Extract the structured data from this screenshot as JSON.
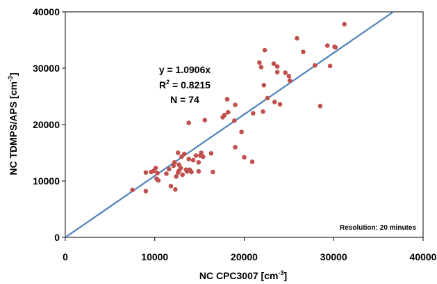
{
  "chart_data": {
    "type": "scatter",
    "xlabel_main": "NC CPC3007 [cm",
    "xlabel_sup": "-3",
    "xlabel_end": "]",
    "ylabel_main": "NC TDMPS/APS [cm",
    "ylabel_sup": "-3",
    "ylabel_end": "]",
    "xlim": [
      0,
      40000
    ],
    "ylim": [
      0,
      40000
    ],
    "xticks": [
      0,
      10000,
      20000,
      30000,
      40000
    ],
    "yticks": [
      0,
      10000,
      20000,
      30000,
      40000
    ],
    "xtick_labels": [
      "0",
      "10000",
      "20000",
      "30000",
      "40000"
    ],
    "ytick_labels": [
      "0",
      "10000",
      "20000",
      "30000",
      "40000"
    ],
    "grid": false,
    "marker_color": "#c0504d",
    "line_color": "#4f81bd",
    "fit": {
      "slope": 1.0906,
      "intercept": 0
    },
    "annotations": {
      "equation": "y = 1.0906x",
      "r2_prefix": "R",
      "r2_sup": "2",
      "r2_rest": " = 0.8215",
      "n": "N = 74",
      "resolution": "Resolution: 20 minutes"
    },
    "points": [
      [
        7500,
        8400
      ],
      [
        9000,
        8200
      ],
      [
        9000,
        11500
      ],
      [
        9600,
        11600
      ],
      [
        9900,
        11800
      ],
      [
        10100,
        12300
      ],
      [
        10300,
        11400
      ],
      [
        10200,
        10400
      ],
      [
        10400,
        10100
      ],
      [
        11300,
        11300
      ],
      [
        11600,
        12100
      ],
      [
        11800,
        9100
      ],
      [
        12100,
        12700
      ],
      [
        12200,
        13300
      ],
      [
        12300,
        8500
      ],
      [
        12400,
        10800
      ],
      [
        12600,
        11500
      ],
      [
        12700,
        11800
      ],
      [
        12700,
        12900
      ],
      [
        12600,
        15000
      ],
      [
        12900,
        12300
      ],
      [
        13000,
        14300
      ],
      [
        13100,
        11100
      ],
      [
        13300,
        14800
      ],
      [
        13500,
        12000
      ],
      [
        13600,
        11700
      ],
      [
        13800,
        13900
      ],
      [
        13800,
        20300
      ],
      [
        13900,
        12000
      ],
      [
        14100,
        11600
      ],
      [
        14300,
        13700
      ],
      [
        14600,
        14500
      ],
      [
        14900,
        13300
      ],
      [
        14900,
        11700
      ],
      [
        15100,
        14500
      ],
      [
        15200,
        15000
      ],
      [
        15400,
        14300
      ],
      [
        15600,
        20800
      ],
      [
        16300,
        14900
      ],
      [
        16500,
        11600
      ],
      [
        17600,
        21300
      ],
      [
        17800,
        21700
      ],
      [
        18100,
        24500
      ],
      [
        18200,
        22200
      ],
      [
        18900,
        20700
      ],
      [
        19000,
        16000
      ],
      [
        19000,
        23500
      ],
      [
        19700,
        18700
      ],
      [
        20000,
        14200
      ],
      [
        20900,
        13400
      ],
      [
        21000,
        22000
      ],
      [
        21700,
        31000
      ],
      [
        21900,
        30200
      ],
      [
        22100,
        22300
      ],
      [
        22200,
        27000
      ],
      [
        22300,
        33200
      ],
      [
        22600,
        24700
      ],
      [
        23300,
        30800
      ],
      [
        23400,
        24000
      ],
      [
        23700,
        30300
      ],
      [
        23700,
        29300
      ],
      [
        24000,
        23600
      ],
      [
        24600,
        29200
      ],
      [
        25000,
        28600
      ],
      [
        25100,
        27800
      ],
      [
        25900,
        35300
      ],
      [
        26600,
        32900
      ],
      [
        27900,
        30500
      ],
      [
        28500,
        23300
      ],
      [
        29300,
        34000
      ],
      [
        29600,
        30400
      ],
      [
        30100,
        33800
      ],
      [
        30200,
        33700
      ],
      [
        31200,
        37800
      ]
    ]
  }
}
